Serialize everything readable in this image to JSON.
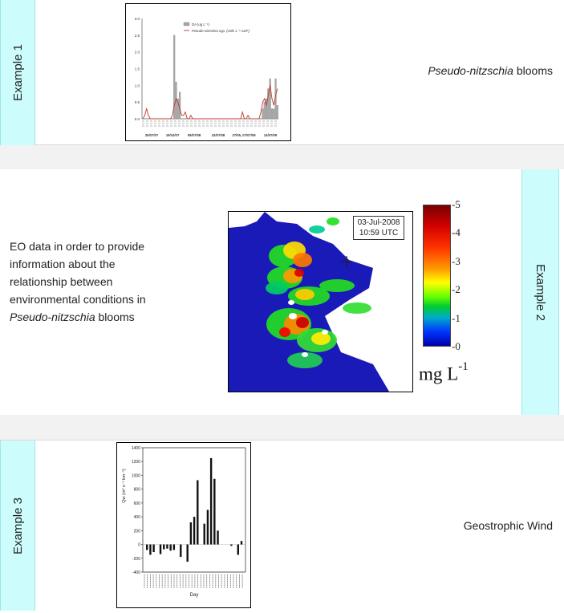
{
  "example1": {
    "tab_label": "Example 1",
    "caption_italic": "Pseudo-nitzschia",
    "caption_rest": " blooms",
    "chart_data": {
      "type": "bar",
      "legend": [
        "DA (ug L⁻¹)",
        "Pseudo-nitzschia spp. (cells L⁻¹ x10⁶)"
      ],
      "yticks": [
        "0.0",
        "0.5",
        "1.0",
        "1.5",
        "2.0",
        "2.5",
        "3.0"
      ],
      "xticks": [
        "25/07/07",
        "19/10/07",
        "09/07/08",
        "22/07/08",
        "27/05, 07/07/09",
        "14/07/09"
      ],
      "ylim": [
        0,
        3.0
      ],
      "bars": [
        0,
        0,
        0,
        0,
        0,
        0,
        0,
        0,
        0,
        0,
        0,
        0,
        0,
        0,
        0,
        0,
        0,
        2.5,
        1.1,
        0.6,
        0.8,
        0,
        0,
        0,
        0,
        0,
        0,
        0,
        0,
        0,
        0,
        0,
        0,
        0,
        0,
        0,
        0,
        0,
        0,
        0,
        0,
        0,
        0,
        0,
        0,
        0,
        0,
        0,
        0,
        0,
        0,
        0,
        0,
        0,
        0,
        0,
        0,
        0,
        0,
        0,
        0,
        0,
        0,
        0,
        0,
        0.3,
        0.5,
        0.6,
        0.9,
        1.2,
        0.3,
        0.3,
        1.2,
        0.4
      ],
      "line": [
        0.0,
        0.1,
        0.3,
        0.1,
        0.0,
        0.0,
        0.0,
        0.0,
        0.0,
        0.0,
        0.0,
        0.0,
        0.0,
        0.0,
        0.0,
        0.0,
        0.1,
        0.4,
        0.6,
        0.5,
        0.3,
        0.1,
        0.1,
        0.2,
        0.0,
        0.0,
        0.1,
        0.0,
        0.0,
        0.0,
        0.0,
        0.0,
        0.0,
        0.0,
        0.0,
        0.0,
        0.0,
        0.0,
        0.0,
        0.0,
        0.0,
        0.0,
        0.0,
        0.0,
        0.0,
        0.0,
        0.0,
        0.0,
        0.0,
        0.0,
        0.0,
        0.0,
        0.0,
        0.0,
        0.2,
        0.0,
        0.0,
        0.1,
        0.0,
        0.0,
        0.0,
        0.0,
        0.0,
        0.0,
        0.2,
        0.5,
        0.6,
        0.4,
        0.7,
        1.0,
        0.6,
        0.4,
        0.7,
        0.9
      ],
      "colors": {
        "bars": "#a6a6a6",
        "line": "#c0392b"
      }
    }
  },
  "example2": {
    "tab_label": "Example 2",
    "text_lines": [
      "EO data in order to provide",
      "information about the",
      "relationship between",
      "environmental conditions in"
    ],
    "text_italic": "Pseudo-nitzschia",
    "text_rest": " blooms",
    "map_date": "03-Jul-2008",
    "map_time": "10:59 UTC",
    "colorbar_ticks": [
      "5",
      "4",
      "3",
      "2",
      "1",
      "0"
    ],
    "colorbar_unit": "mg L",
    "colorbar_unit_sup": "-1",
    "colors": {
      "water": "#1a1ab8",
      "land": "#ffffff"
    }
  },
  "example3": {
    "tab_label": "Example 3",
    "caption": "Geostrophic Wind",
    "chart_data": {
      "type": "bar",
      "xlabel": "Day",
      "ylabel": "Qw (m³ s⁻¹ km⁻¹)",
      "ylim": [
        -400,
        1400
      ],
      "yticks": [
        "1400",
        "1200",
        "1000",
        "800",
        "600",
        "400",
        "200",
        "0",
        "-200",
        "-400"
      ],
      "values": [
        -80,
        -150,
        -110,
        0,
        -140,
        -70,
        -60,
        -90,
        -80,
        0,
        -180,
        0,
        -250,
        320,
        400,
        930,
        0,
        300,
        500,
        1250,
        950,
        200,
        0,
        0,
        0,
        -20,
        0,
        -150,
        50
      ],
      "colors": {
        "bars": "#111111"
      }
    }
  }
}
